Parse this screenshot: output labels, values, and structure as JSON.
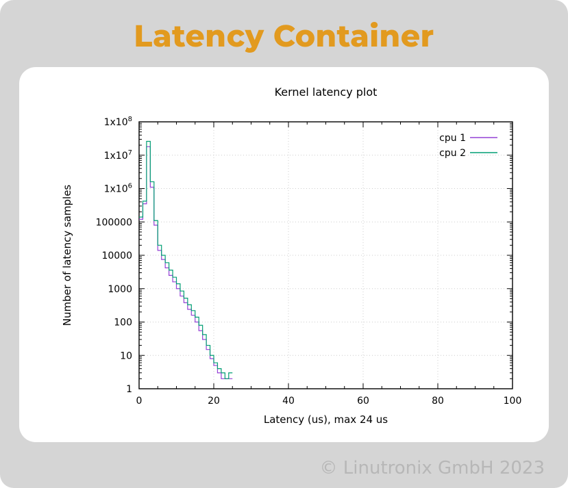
{
  "page": {
    "title": "Latency Container",
    "title_color": "#e29a1f",
    "title_fontsize": 44,
    "title_fontweight": 800,
    "background_color": "#d5d5d5",
    "card_background": "#ffffff",
    "card_border_radius": 24,
    "copyright": "© Linutronix GmbH 2023",
    "copyright_color": "#b7b7b7",
    "copyright_fontsize": 26
  },
  "chart": {
    "type": "step-histogram-log-y",
    "title": "Kernel latency plot",
    "title_fontsize": 16,
    "xlabel": "Latency (us), max 24 us",
    "ylabel": "Number of latency samples",
    "label_fontsize": 15,
    "tick_fontsize": 14,
    "xlim": [
      0,
      100
    ],
    "xticks": [
      0,
      20,
      40,
      60,
      80,
      100
    ],
    "ylim": [
      1,
      100000000.0
    ],
    "yticks": [
      1,
      10,
      100,
      1000,
      10000,
      100000,
      1000000.0,
      10000000.0,
      100000000.0
    ],
    "ytick_labels": [
      "1",
      "10",
      "100",
      "1000",
      "10000",
      "100000",
      "1x10^6",
      "1x10^7",
      "1x10^8"
    ],
    "grid_color": "#cccccc",
    "grid_dash": "1 3",
    "axis_color": "#000000",
    "line_width": 1.2,
    "legend": {
      "entries": [
        {
          "label": "cpu 1",
          "color": "#9440d5"
        },
        {
          "label": "cpu 2",
          "color": "#009e73"
        }
      ],
      "position": "top-right"
    },
    "series": [
      {
        "name": "cpu 1",
        "color": "#9440d5",
        "x": [
          0,
          1,
          2,
          3,
          4,
          5,
          6,
          7,
          8,
          9,
          10,
          11,
          12,
          13,
          14,
          15,
          16,
          17,
          18,
          19,
          20,
          21,
          22,
          23,
          24
        ],
        "y": [
          120000,
          350000,
          18000000,
          1100000,
          80000,
          14000,
          7500,
          4200,
          2500,
          1600,
          1000,
          600,
          380,
          240,
          160,
          100,
          55,
          30,
          15,
          8,
          5,
          3,
          2,
          2,
          2
        ]
      },
      {
        "name": "cpu 2",
        "color": "#009e73",
        "x": [
          0,
          1,
          2,
          3,
          4,
          5,
          6,
          7,
          8,
          9,
          10,
          11,
          12,
          13,
          14,
          15,
          16,
          17,
          18,
          19,
          20,
          21,
          22,
          23,
          24
        ],
        "y": [
          140000,
          420000,
          26000000,
          1600000,
          110000,
          20000,
          10000,
          6000,
          3600,
          2200,
          1400,
          850,
          520,
          330,
          220,
          140,
          80,
          42,
          20,
          10,
          6,
          4,
          3,
          2,
          3
        ]
      }
    ]
  }
}
